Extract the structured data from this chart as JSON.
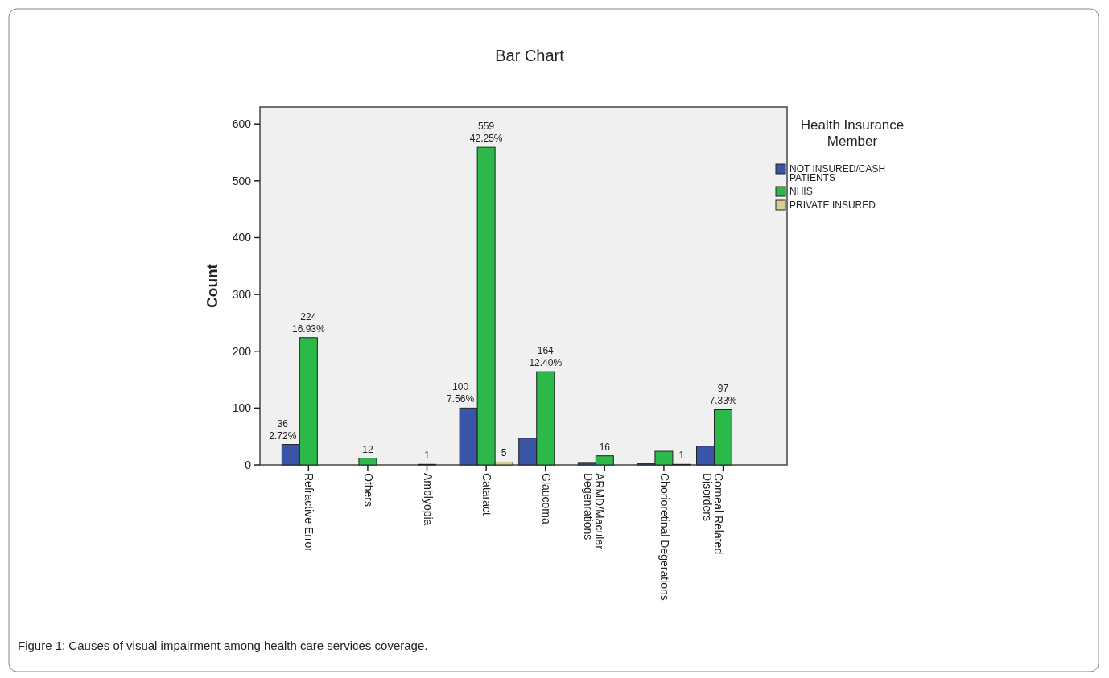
{
  "chart_data": {
    "type": "bar",
    "title": "Bar Chart",
    "ylabel": "Count",
    "legend_title": "Health Insurance Member",
    "categories": [
      "Refractive Error",
      "Others",
      "Amblyopia",
      "Cataract",
      "Glaucoma",
      "ARMD/Macular\nDegenrations",
      "Chorioretinal Degerations",
      "Corneal Related\nDisorders"
    ],
    "series": [
      {
        "name": "NOT INSURED/CASH PATIENTS",
        "color": "#3a55a8",
        "values": [
          36,
          null,
          null,
          100,
          47,
          3,
          2,
          33
        ],
        "value_labels": [
          "36\n2.72%",
          null,
          null,
          "100\n7.56%",
          null,
          null,
          null,
          null
        ]
      },
      {
        "name": "NHIS",
        "color": "#2db84a",
        "values": [
          224,
          12,
          1,
          559,
          164,
          16,
          24,
          97
        ],
        "value_labels": [
          "224\n16.93%",
          "12",
          "1",
          "559\n42.25%",
          "164\n12.40%",
          "16",
          null,
          "97\n7.33%"
        ]
      },
      {
        "name": "PRIVATE INSURED",
        "color": "#d6cf93",
        "values": [
          null,
          null,
          null,
          5,
          null,
          null,
          1,
          null
        ],
        "value_labels": [
          null,
          null,
          null,
          "5",
          null,
          null,
          "1",
          null
        ]
      }
    ],
    "ylim": [
      0,
      630
    ],
    "yticks": [
      0,
      100,
      200,
      300,
      400,
      500,
      600
    ],
    "grid": false,
    "legend": "right",
    "annotations": [
      "Figure 1: Causes of visual impairment among health care services coverage."
    ]
  }
}
